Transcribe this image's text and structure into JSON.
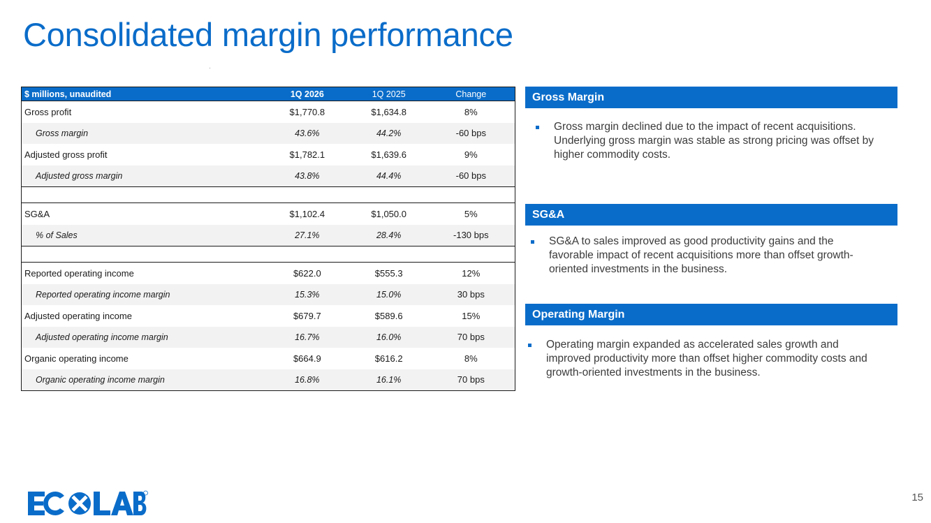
{
  "title": "Consolidated margin performance",
  "table": {
    "headers": [
      "$ millions, unaudited",
      "1Q 2026",
      "1Q 2025",
      "Change"
    ],
    "rows": [
      {
        "label": "Gross profit",
        "v1": "$1,770.8",
        "v2": "$1,634.8",
        "chg": "8%"
      },
      {
        "label": "Gross margin",
        "v1": "43.6%",
        "v2": "44.2%",
        "chg": "-60 bps"
      },
      {
        "label": "Adjusted gross profit",
        "v1": "$1,782.1",
        "v2": "$1,639.6",
        "chg": "9%"
      },
      {
        "label": "Adjusted gross margin",
        "v1": "43.8%",
        "v2": "44.4%",
        "chg": "-60 bps"
      },
      {
        "label": "SG&A",
        "v1": "$1,102.4",
        "v2": "$1,050.0",
        "chg": "5%"
      },
      {
        "label": "% of Sales",
        "v1": "27.1%",
        "v2": "28.4%",
        "chg": "-130 bps"
      },
      {
        "label": "Reported operating income",
        "v1": "$622.0",
        "v2": "$555.3",
        "chg": "12%"
      },
      {
        "label": "Reported operating income margin",
        "v1": "15.3%",
        "v2": "15.0%",
        "chg": "30 bps"
      },
      {
        "label": "Adjusted operating income",
        "v1": "$679.7",
        "v2": "$589.6",
        "chg": "15%"
      },
      {
        "label": "Adjusted operating income margin",
        "v1": "16.7%",
        "v2": "16.0%",
        "chg": "70 bps"
      },
      {
        "label": "Organic operating income",
        "v1": "$664.9",
        "v2": "$616.2",
        "chg": "8%"
      },
      {
        "label": "Organic operating income margin",
        "v1": "16.8%",
        "v2": "16.1%",
        "chg": "70 bps"
      }
    ]
  },
  "panels": [
    {
      "header": "Gross Margin",
      "text": "Gross margin declined due to the impact of recent acquisitions. Underlying gross margin was stable as strong pricing was offset by higher commodity costs."
    },
    {
      "header": "SG&A",
      "text": "SG&A to sales improved as good productivity gains and the favorable impact of recent acquisitions more than offset growth-oriented investments in the business."
    },
    {
      "header": "Operating Margin",
      "text": "Operating margin expanded as accelerated sales growth and improved productivity more than offset higher commodity costs and growth-oriented investments in the business."
    }
  ],
  "logo": {
    "text": "ECOLAB",
    "mark": "®",
    "color": "#0a6cc9"
  },
  "page_number": "15"
}
